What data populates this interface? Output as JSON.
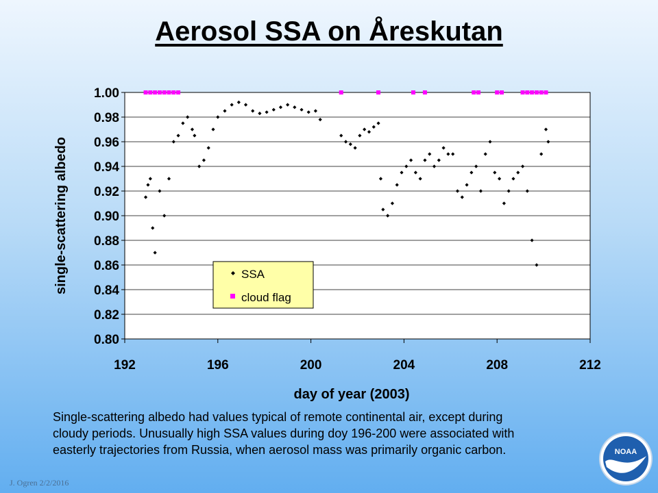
{
  "slide": {
    "title": "Aerosol SSA on Åreskutan",
    "caption_lines": [
      "Single-scattering albedo had values typical of remote continental air, except during",
      "cloudy periods.  Unusually  high SSA values during doy 196-200 were associated with",
      "easterly trajectories from Russia, when aerosol mass was primarily organic carbon."
    ],
    "footer_credit": "J. Ogren  2/2/2016",
    "logo_text": "NOAA"
  },
  "chart_data": {
    "type": "scatter",
    "xlabel": "day of year (2003)",
    "ylabel": "single-scattering albedo",
    "xlim": [
      192,
      212
    ],
    "ylim": [
      0.8,
      1.0
    ],
    "xticks": [
      192,
      196,
      200,
      204,
      208,
      212
    ],
    "yticks": [
      0.8,
      0.82,
      0.84,
      0.86,
      0.88,
      0.9,
      0.92,
      0.94,
      0.96,
      0.98,
      1.0
    ],
    "ytick_labels": [
      "0.80",
      "0.82",
      "0.84",
      "0.86",
      "0.88",
      "0.90",
      "0.92",
      "0.94",
      "0.96",
      "0.98",
      "1.00"
    ],
    "grid": "horizontal",
    "legend": {
      "placement": "center-left",
      "entries": [
        {
          "label": "SSA",
          "color": "#000000",
          "marker": "diamond"
        },
        {
          "label": "cloud flag",
          "color": "#ff00ff",
          "marker": "square"
        }
      ]
    },
    "series": [
      {
        "name": "SSA",
        "color": "#000000",
        "x": [
          192.9,
          193.0,
          193.1,
          193.2,
          193.3,
          193.5,
          193.7,
          193.9,
          194.1,
          194.3,
          194.5,
          194.7,
          194.9,
          195.0,
          195.2,
          195.4,
          195.6,
          195.8,
          196.0,
          196.3,
          196.6,
          196.9,
          197.2,
          197.5,
          197.8,
          198.1,
          198.4,
          198.7,
          199.0,
          199.3,
          199.6,
          199.9,
          200.2,
          200.4,
          201.3,
          201.5,
          201.7,
          201.9,
          202.1,
          202.3,
          202.5,
          202.7,
          202.9,
          203.0,
          203.1,
          203.3,
          203.5,
          203.7,
          203.9,
          204.1,
          204.3,
          204.5,
          204.7,
          204.9,
          205.1,
          205.3,
          205.5,
          205.7,
          205.9,
          206.1,
          206.3,
          206.5,
          206.7,
          206.9,
          207.1,
          207.3,
          207.5,
          207.7,
          207.9,
          208.1,
          208.3,
          208.5,
          208.7,
          208.9,
          209.1,
          209.3,
          209.5,
          209.7,
          209.9,
          210.1,
          210.2
        ],
        "y": [
          0.915,
          0.925,
          0.93,
          0.89,
          0.87,
          0.92,
          0.9,
          0.93,
          0.96,
          0.965,
          0.975,
          0.98,
          0.97,
          0.965,
          0.94,
          0.945,
          0.955,
          0.97,
          0.98,
          0.985,
          0.99,
          0.992,
          0.99,
          0.985,
          0.983,
          0.984,
          0.986,
          0.988,
          0.99,
          0.988,
          0.986,
          0.984,
          0.985,
          0.978,
          0.965,
          0.96,
          0.958,
          0.955,
          0.965,
          0.97,
          0.968,
          0.972,
          0.975,
          0.93,
          0.905,
          0.9,
          0.91,
          0.925,
          0.935,
          0.94,
          0.945,
          0.935,
          0.93,
          0.945,
          0.95,
          0.94,
          0.945,
          0.955,
          0.95,
          0.95,
          0.92,
          0.915,
          0.925,
          0.935,
          0.94,
          0.92,
          0.95,
          0.96,
          0.935,
          0.93,
          0.91,
          0.92,
          0.93,
          0.935,
          0.94,
          0.92,
          0.88,
          0.86,
          0.95,
          0.97,
          0.96
        ]
      },
      {
        "name": "cloud flag",
        "color": "#ff00ff",
        "x": [
          192.9,
          193.1,
          193.3,
          193.5,
          193.7,
          193.9,
          194.1,
          194.3,
          201.3,
          202.9,
          204.4,
          204.9,
          207.0,
          207.2,
          208.0,
          208.2,
          209.1,
          209.3,
          209.5,
          209.7,
          209.9,
          210.1
        ],
        "y": [
          1.0,
          1.0,
          1.0,
          1.0,
          1.0,
          1.0,
          1.0,
          1.0,
          1.0,
          1.0,
          1.0,
          1.0,
          1.0,
          1.0,
          1.0,
          1.0,
          1.0,
          1.0,
          1.0,
          1.0,
          1.0,
          1.0
        ]
      }
    ]
  }
}
